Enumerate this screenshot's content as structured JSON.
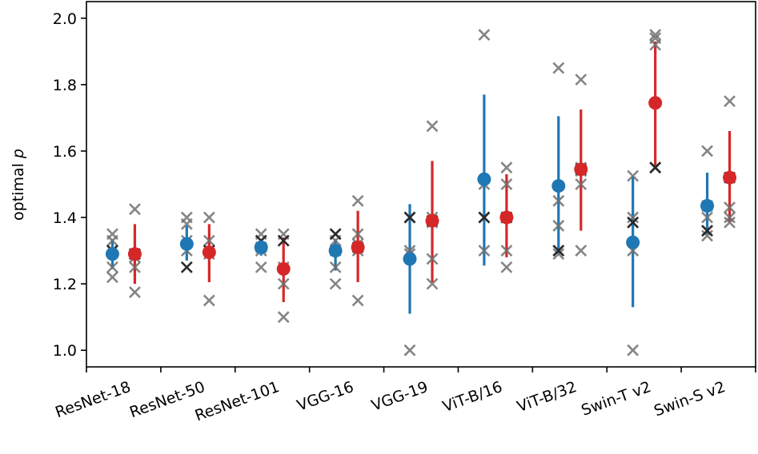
{
  "chart_data": {
    "type": "scatter",
    "title": "",
    "xlabel": "",
    "ylabel_prefix": "optimal ",
    "ylabel_var": "p",
    "ylim": [
      0.95,
      2.05
    ],
    "yticks": [
      "1.0",
      "1.2",
      "1.4",
      "1.6",
      "1.8",
      "2.0"
    ],
    "ytick_values": [
      1.0,
      1.2,
      1.4,
      1.6,
      1.8,
      2.0
    ],
    "categories": [
      "ResNet-18",
      "ResNet-50",
      "ResNet-101",
      "VGG-16",
      "VGG-19",
      "ViT-B/16",
      "ViT-B/32",
      "Swin-T v2",
      "Swin-S v2"
    ],
    "series": [
      {
        "name": "blue",
        "color": "#1f77b4",
        "mean": [
          1.29,
          1.32,
          1.31,
          1.3,
          1.275,
          1.515,
          1.495,
          1.325,
          1.435
        ],
        "err_low": [
          1.245,
          1.27,
          1.285,
          1.24,
          1.11,
          1.255,
          1.29,
          1.13,
          1.35
        ],
        "err_high": [
          1.335,
          1.375,
          1.335,
          1.335,
          1.44,
          1.77,
          1.705,
          1.525,
          1.535
        ],
        "samples": [
          [
            1.35,
            1.33,
            1.3,
            1.25,
            1.22
          ],
          [
            1.4,
            1.38,
            1.33,
            1.3,
            1.25
          ],
          [
            1.35,
            1.33,
            1.31,
            1.3,
            1.25
          ],
          [
            1.35,
            1.33,
            1.3,
            1.25,
            1.2
          ],
          [
            1.4,
            1.4,
            1.3,
            1.29,
            1.0
          ],
          [
            1.95,
            1.5,
            1.4,
            1.4,
            1.3
          ],
          [
            1.85,
            1.45,
            1.375,
            1.3,
            1.29
          ],
          [
            1.525,
            1.4,
            1.385,
            1.3,
            1.0
          ],
          [
            1.6,
            1.435,
            1.4,
            1.36,
            1.345
          ]
        ],
        "best": [
          1.3,
          1.25,
          1.33,
          1.35,
          1.4,
          1.4,
          1.3,
          1.385,
          1.36
        ]
      },
      {
        "name": "red",
        "color": "#d62728",
        "mean": [
          1.29,
          1.295,
          1.245,
          1.31,
          1.39,
          1.4,
          1.545,
          1.745,
          1.52
        ],
        "err_low": [
          1.2,
          1.205,
          1.145,
          1.205,
          1.205,
          1.28,
          1.36,
          1.555,
          1.385
        ],
        "err_high": [
          1.38,
          1.38,
          1.34,
          1.42,
          1.57,
          1.53,
          1.725,
          1.93,
          1.66
        ],
        "samples": [
          [
            1.425,
            1.29,
            1.28,
            1.25,
            1.175
          ],
          [
            1.4,
            1.33,
            1.3,
            1.29,
            1.15
          ],
          [
            1.35,
            1.33,
            1.25,
            1.2,
            1.1
          ],
          [
            1.45,
            1.35,
            1.32,
            1.3,
            1.15
          ],
          [
            1.675,
            1.4,
            1.385,
            1.275,
            1.2
          ],
          [
            1.55,
            1.5,
            1.4,
            1.3,
            1.25
          ],
          [
            1.815,
            1.55,
            1.54,
            1.5,
            1.3
          ],
          [
            1.95,
            1.94,
            1.92,
            1.55,
            1.55
          ],
          [
            1.75,
            1.52,
            1.43,
            1.4,
            1.385
          ]
        ],
        "best": [
          1.29,
          1.3,
          1.33,
          1.31,
          1.39,
          1.4,
          1.545,
          1.55,
          1.52
        ]
      }
    ]
  }
}
